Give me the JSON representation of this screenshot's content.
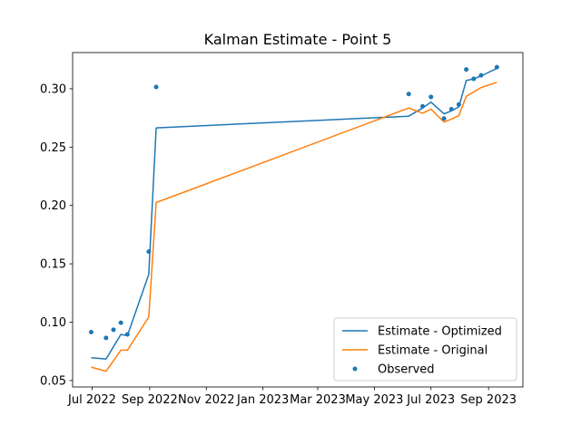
{
  "chart_data": {
    "type": "line",
    "title": "Kalman Estimate - Point 5",
    "xlabel": "",
    "ylabel": "",
    "x_axis": {
      "type": "date",
      "range": [
        "2022-06-10",
        "2023-10-08"
      ],
      "ticks": [
        {
          "date": "2022-07-01",
          "label": "Jul 2022"
        },
        {
          "date": "2022-09-01",
          "label": "Sep 2022"
        },
        {
          "date": "2022-11-01",
          "label": "Nov 2022"
        },
        {
          "date": "2023-01-01",
          "label": "Jan 2023"
        },
        {
          "date": "2023-03-01",
          "label": "Mar 2023"
        },
        {
          "date": "2023-05-01",
          "label": "May 2023"
        },
        {
          "date": "2023-07-01",
          "label": "Jul 2023"
        },
        {
          "date": "2023-09-01",
          "label": "Sep 2023"
        }
      ]
    },
    "y_axis": {
      "range": [
        0.0445,
        0.331
      ],
      "ticks": [
        {
          "value": 0.05,
          "label": "0.05"
        },
        {
          "value": 0.1,
          "label": "0.10"
        },
        {
          "value": 0.15,
          "label": "0.15"
        },
        {
          "value": 0.2,
          "label": "0.20"
        },
        {
          "value": 0.25,
          "label": "0.25"
        },
        {
          "value": 0.3,
          "label": "0.30"
        }
      ]
    },
    "grid": false,
    "legend_position": "lower-right",
    "series": [
      {
        "name": "Estimate - Optimized",
        "kind": "line",
        "color": "#1f77b4",
        "points": [
          {
            "x": "2022-06-30",
            "y": 0.0695
          },
          {
            "x": "2022-07-16",
            "y": 0.0685
          },
          {
            "x": "2022-07-24",
            "y": 0.079
          },
          {
            "x": "2022-08-01",
            "y": 0.0895
          },
          {
            "x": "2022-08-08",
            "y": 0.0885
          },
          {
            "x": "2022-08-31",
            "y": 0.141
          },
          {
            "x": "2022-09-08",
            "y": 0.2665
          },
          {
            "x": "2023-06-07",
            "y": 0.2765
          },
          {
            "x": "2023-06-22",
            "y": 0.2835
          },
          {
            "x": "2023-07-01",
            "y": 0.2885
          },
          {
            "x": "2023-07-15",
            "y": 0.2785
          },
          {
            "x": "2023-07-23",
            "y": 0.281
          },
          {
            "x": "2023-07-31",
            "y": 0.2845
          },
          {
            "x": "2023-08-08",
            "y": 0.307
          },
          {
            "x": "2023-08-16",
            "y": 0.3085
          },
          {
            "x": "2023-08-24",
            "y": 0.311
          },
          {
            "x": "2023-09-10",
            "y": 0.3175
          }
        ]
      },
      {
        "name": "Estimate - Original",
        "kind": "line",
        "color": "#ff7f0e",
        "points": [
          {
            "x": "2022-06-30",
            "y": 0.0615
          },
          {
            "x": "2022-07-16",
            "y": 0.058
          },
          {
            "x": "2022-07-24",
            "y": 0.067
          },
          {
            "x": "2022-08-01",
            "y": 0.076
          },
          {
            "x": "2022-08-08",
            "y": 0.076
          },
          {
            "x": "2022-08-31",
            "y": 0.1045
          },
          {
            "x": "2022-09-08",
            "y": 0.2025
          },
          {
            "x": "2023-06-07",
            "y": 0.2835
          },
          {
            "x": "2023-06-22",
            "y": 0.279
          },
          {
            "x": "2023-07-01",
            "y": 0.2825
          },
          {
            "x": "2023-07-15",
            "y": 0.2715
          },
          {
            "x": "2023-07-23",
            "y": 0.274
          },
          {
            "x": "2023-07-31",
            "y": 0.277
          },
          {
            "x": "2023-08-08",
            "y": 0.2935
          },
          {
            "x": "2023-08-24",
            "y": 0.301
          },
          {
            "x": "2023-09-10",
            "y": 0.3055
          }
        ]
      },
      {
        "name": "Observed",
        "kind": "scatter",
        "color": "#1f77b4",
        "points": [
          {
            "x": "2022-06-30",
            "y": 0.0915
          },
          {
            "x": "2022-07-16",
            "y": 0.0865
          },
          {
            "x": "2022-07-24",
            "y": 0.0935
          },
          {
            "x": "2022-08-01",
            "y": 0.0995
          },
          {
            "x": "2022-08-08",
            "y": 0.0895
          },
          {
            "x": "2022-08-31",
            "y": 0.1605
          },
          {
            "x": "2022-09-08",
            "y": 0.3015
          },
          {
            "x": "2023-06-07",
            "y": 0.2955
          },
          {
            "x": "2023-06-22",
            "y": 0.285
          },
          {
            "x": "2023-07-01",
            "y": 0.293
          },
          {
            "x": "2023-07-15",
            "y": 0.2745
          },
          {
            "x": "2023-07-23",
            "y": 0.2825
          },
          {
            "x": "2023-07-31",
            "y": 0.2865
          },
          {
            "x": "2023-08-08",
            "y": 0.3165
          },
          {
            "x": "2023-08-16",
            "y": 0.3085
          },
          {
            "x": "2023-08-24",
            "y": 0.3115
          },
          {
            "x": "2023-09-10",
            "y": 0.3185
          }
        ]
      }
    ]
  }
}
